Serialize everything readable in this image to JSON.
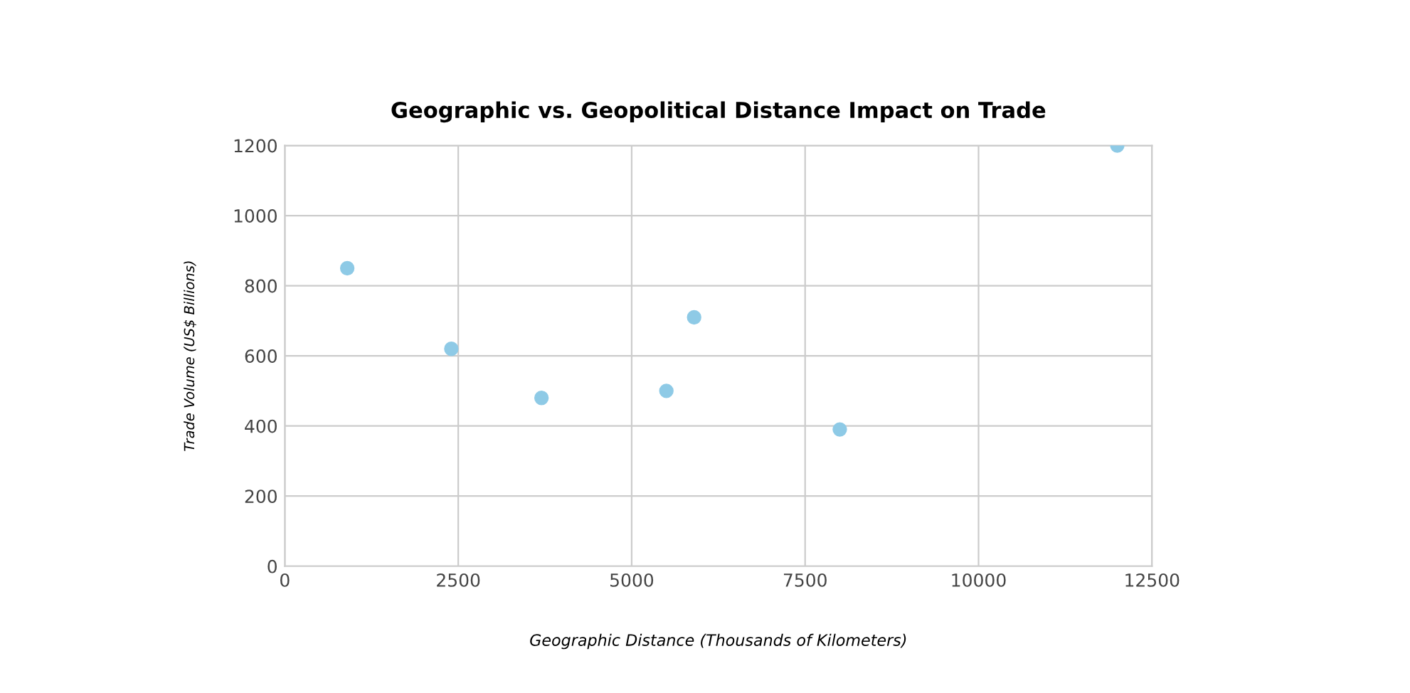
{
  "chart_data": {
    "type": "scatter",
    "title": "Geographic vs. Geopolitical Distance Impact on Trade",
    "xlabel": "Geographic Distance (Thousands of Kilometers)",
    "ylabel": "Trade Volume (US$ Billions)",
    "x": [
      900,
      2400,
      3700,
      5500,
      5900,
      8000,
      12000
    ],
    "series": [
      {
        "color": "#8ecae6",
        "values": [
          850,
          620,
          480,
          500,
          710,
          390,
          1200
        ]
      }
    ],
    "xlim": [
      0,
      12500
    ],
    "xticks": [
      0,
      2500,
      5000,
      7500,
      10000,
      12500
    ],
    "ylim": [
      0,
      1200
    ],
    "yticks": [
      0,
      200,
      400,
      600,
      800,
      1000,
      1200
    ],
    "grid": true,
    "marker": "circle"
  }
}
